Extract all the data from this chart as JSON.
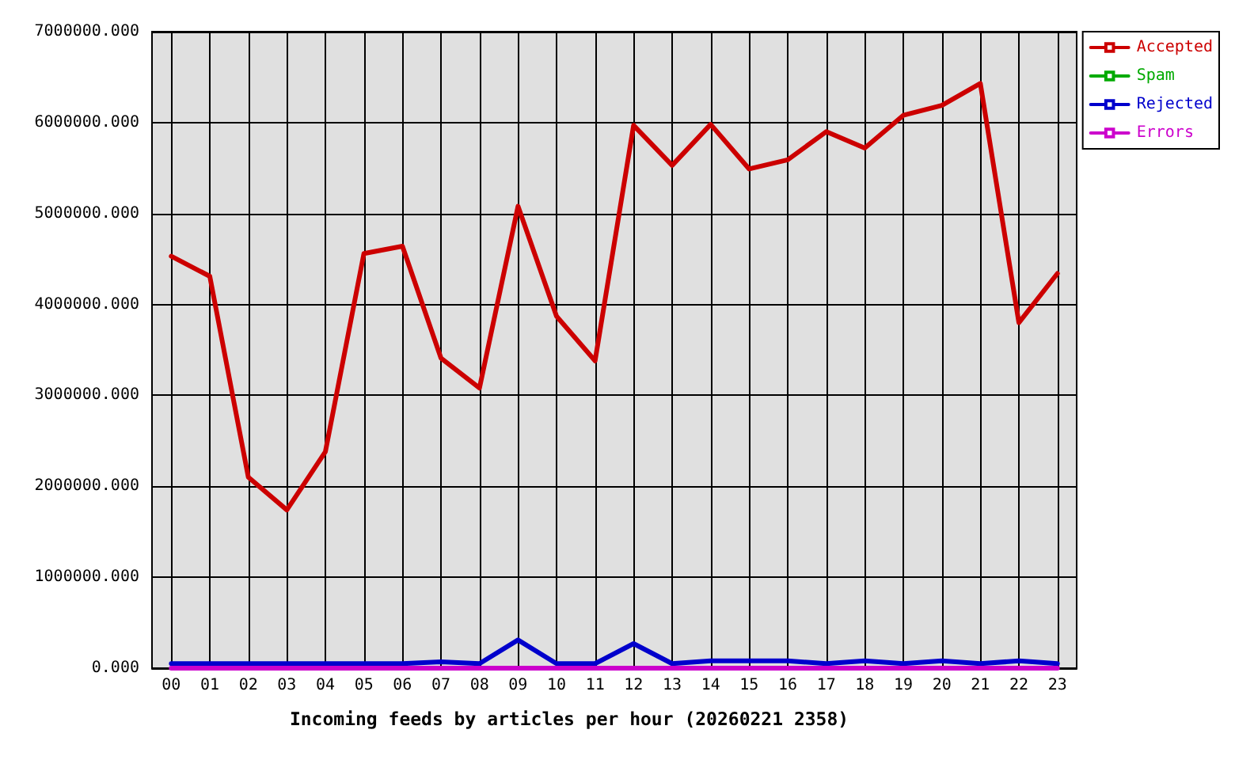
{
  "chart_data": {
    "type": "line",
    "xlabel": "Incoming feeds by articles per hour (20260221 2358)",
    "categories": [
      "00",
      "01",
      "02",
      "03",
      "04",
      "05",
      "06",
      "07",
      "08",
      "09",
      "10",
      "11",
      "12",
      "13",
      "14",
      "15",
      "16",
      "17",
      "18",
      "19",
      "20",
      "21",
      "22",
      "23"
    ],
    "series": [
      {
        "name": "Accepted",
        "color": "#cc0000",
        "values": [
          4530000,
          4310000,
          2100000,
          1740000,
          2380000,
          4560000,
          4640000,
          3410000,
          3080000,
          5080000,
          3870000,
          3380000,
          5970000,
          5530000,
          5980000,
          5490000,
          5590000,
          5900000,
          5720000,
          6080000,
          6190000,
          6430000,
          3800000,
          4340000
        ]
      },
      {
        "name": "Spam",
        "color": "#00aa00",
        "values": [
          null,
          null,
          null,
          null,
          null,
          null,
          null,
          null,
          null,
          null,
          null,
          null,
          null,
          null,
          null,
          null,
          null,
          null,
          null,
          null,
          null,
          null,
          null,
          null
        ]
      },
      {
        "name": "Rejected",
        "color": "#0000cc",
        "values": [
          50000,
          50000,
          50000,
          50000,
          50000,
          50000,
          50000,
          70000,
          50000,
          310000,
          50000,
          50000,
          270000,
          50000,
          80000,
          80000,
          80000,
          50000,
          80000,
          50000,
          80000,
          50000,
          80000,
          50000
        ]
      },
      {
        "name": "Errors",
        "color": "#cc00cc",
        "values": [
          0,
          0,
          0,
          0,
          0,
          0,
          0,
          0,
          0,
          0,
          0,
          0,
          0,
          0,
          0,
          0,
          0,
          0,
          0,
          0,
          0,
          0,
          0,
          0
        ]
      }
    ],
    "ylim": [
      0,
      7000000
    ],
    "yticks": [
      {
        "value": 0,
        "label": "0.000"
      },
      {
        "value": 1000000,
        "label": "1000000.000"
      },
      {
        "value": 2000000,
        "label": "2000000.000"
      },
      {
        "value": 3000000,
        "label": "3000000.000"
      },
      {
        "value": 4000000,
        "label": "4000000.000"
      },
      {
        "value": 5000000,
        "label": "5000000.000"
      },
      {
        "value": 6000000,
        "label": "6000000.000"
      },
      {
        "value": 7000000,
        "label": "7000000.000"
      }
    ],
    "grid": true,
    "legend": "top right",
    "line_style": "solid"
  }
}
